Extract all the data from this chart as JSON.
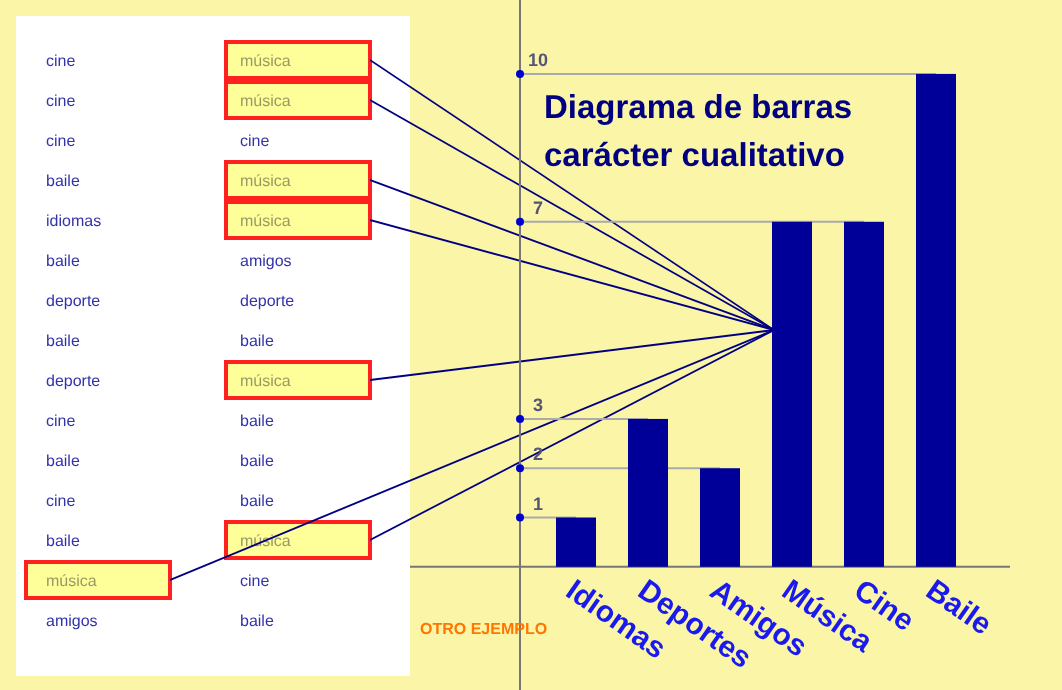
{
  "chart_data": {
    "type": "bar",
    "title": "Diagrama de barras carácter cualitativo",
    "categories": [
      "Idiomas",
      "Deportes",
      "Amigos",
      "Música",
      "Cine",
      "Baile"
    ],
    "values": [
      1,
      3,
      2,
      7,
      7,
      10
    ],
    "color": "#000099",
    "ylim": [
      -2.5,
      11.5
    ],
    "yticks": [
      1,
      2,
      3,
      7,
      10
    ],
    "grid": "y",
    "annotations": [
      "cine",
      "música",
      "cine",
      "música",
      "cine",
      "cine",
      "baile",
      "música",
      "idiomas",
      "música",
      "baile",
      "amigos",
      "deporte",
      "deporte",
      "baile",
      "baile",
      "deporte",
      "música",
      "cine",
      "baile",
      "baile",
      "baile",
      "cine",
      "baile",
      "baile",
      "música",
      "música",
      "cine",
      "amigos",
      "baile",
      "OTRO EJEMPLO"
    ]
  }
}
